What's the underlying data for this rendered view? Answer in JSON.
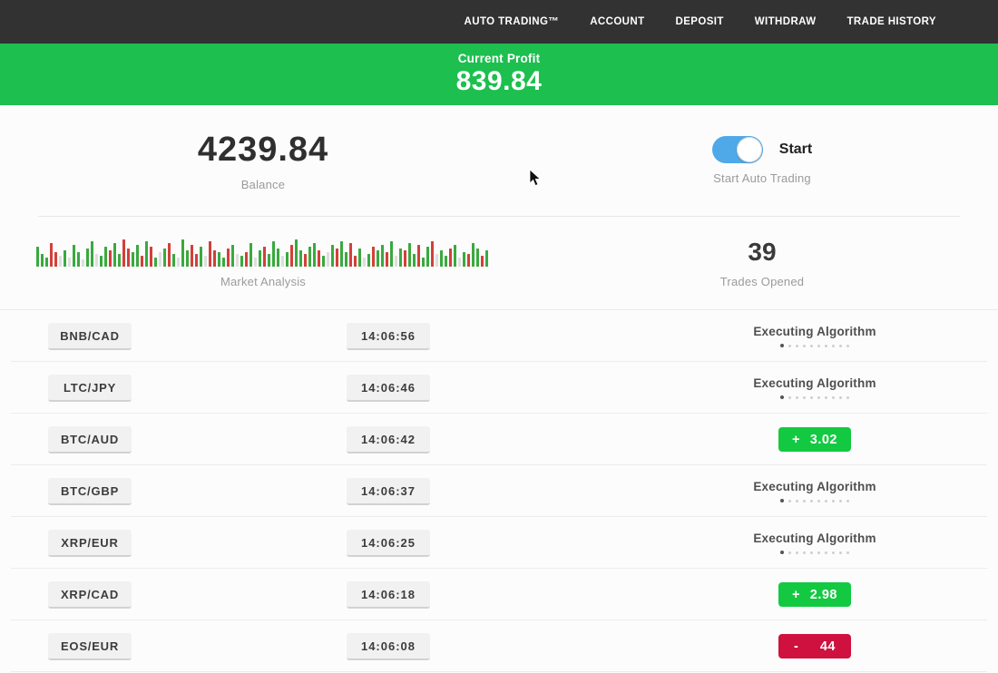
{
  "nav": {
    "items": [
      {
        "label": "AUTO TRADING™"
      },
      {
        "label": "ACCOUNT"
      },
      {
        "label": "DEPOSIT"
      },
      {
        "label": "WITHDRAW"
      },
      {
        "label": "TRADE HISTORY"
      }
    ]
  },
  "profit_banner": {
    "label": "Current Profit",
    "value": "839.84"
  },
  "stats": {
    "balance": {
      "value": "4239.84",
      "label": "Balance"
    },
    "auto_trading": {
      "toggle_label": "Start",
      "label": "Start Auto Trading",
      "enabled": true
    },
    "market_analysis": {
      "label": "Market Analysis",
      "bars": [
        "g22",
        "g14",
        "g10",
        "r26",
        "r16",
        "l12",
        "g18",
        "l10",
        "g24",
        "g16",
        "l8",
        "g20",
        "g28",
        "l14",
        "g12",
        "g22",
        "r18",
        "g26",
        "g14",
        "r30",
        "r20",
        "g16",
        "g24",
        "r12",
        "g28",
        "r22",
        "g10",
        "l16",
        "g20",
        "r26",
        "g14",
        "l10",
        "g30",
        "g18",
        "r24",
        "r14",
        "g22",
        "l12",
        "r28",
        "r18",
        "g16",
        "g10",
        "r20",
        "g24",
        "l14",
        "g12",
        "r16",
        "g26",
        "l10",
        "g18",
        "r22",
        "g14",
        "g28",
        "g20",
        "l12",
        "g16",
        "r24",
        "g30",
        "g18",
        "r14",
        "g22",
        "g26",
        "r18",
        "g12",
        "l16",
        "g24",
        "r20",
        "g28",
        "g16",
        "r26",
        "r12",
        "g20",
        "l10",
        "g14",
        "r22",
        "g18",
        "g24",
        "r16",
        "g28",
        "l12",
        "g20",
        "r18",
        "g26",
        "g14",
        "r24",
        "g10",
        "g22",
        "r28",
        "l14",
        "g18",
        "g12",
        "r20",
        "g24",
        "l10",
        "g16",
        "r14",
        "g26",
        "g20",
        "r12",
        "g18"
      ]
    },
    "trades_opened": {
      "value": "39",
      "label": "Trades Opened"
    }
  },
  "progress": {
    "dots_count": 10,
    "status_label": "Executing Algorithm"
  },
  "trades": [
    {
      "pair": "BNB/CAD",
      "time": "14:06:56",
      "status": "executing"
    },
    {
      "pair": "LTC/JPY",
      "time": "14:06:46",
      "status": "executing"
    },
    {
      "pair": "BTC/AUD",
      "time": "14:06:42",
      "status": "profit",
      "sign": "+",
      "value": "3.02"
    },
    {
      "pair": "BTC/GBP",
      "time": "14:06:37",
      "status": "executing"
    },
    {
      "pair": "XRP/EUR",
      "time": "14:06:25",
      "status": "executing"
    },
    {
      "pair": "XRP/CAD",
      "time": "14:06:18",
      "status": "profit",
      "sign": "+",
      "value": "2.98"
    },
    {
      "pair": "EOS/EUR",
      "time": "14:06:08",
      "status": "loss",
      "sign": "-",
      "value": "44"
    }
  ],
  "colors": {
    "nav_bg": "#323232",
    "banner_green": "#1dbf4f",
    "profit_green": "#14c942",
    "loss_red": "#ce113e",
    "toggle_blue": "#4fa9e9",
    "bar_green": "#3aa93f",
    "bar_red": "#d2403a",
    "bar_light": "#dedede"
  }
}
